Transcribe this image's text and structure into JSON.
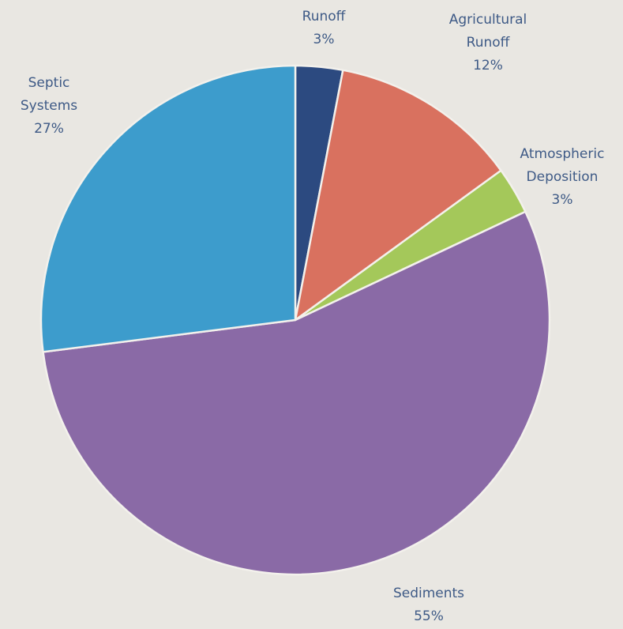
{
  "chart_data": {
    "type": "pie",
    "slices": [
      {
        "label": [
          "Runoff"
        ],
        "value_label": "3%",
        "value": 3,
        "color": "#2c4a80"
      },
      {
        "label": [
          "Agricultural",
          "Runoff"
        ],
        "value_label": "12%",
        "value": 12,
        "color": "#d9715f"
      },
      {
        "label": [
          "Atmospheric",
          "Deposition"
        ],
        "value_label": "3%",
        "value": 3,
        "color": "#a4c85a"
      },
      {
        "label": [
          "Sediments"
        ],
        "value_label": "55%",
        "value": 55,
        "color": "#8a6aa6"
      },
      {
        "label": [
          "Septic",
          "Systems"
        ],
        "value_label": "27%",
        "value": 27,
        "color": "#3d9ccc"
      }
    ]
  }
}
